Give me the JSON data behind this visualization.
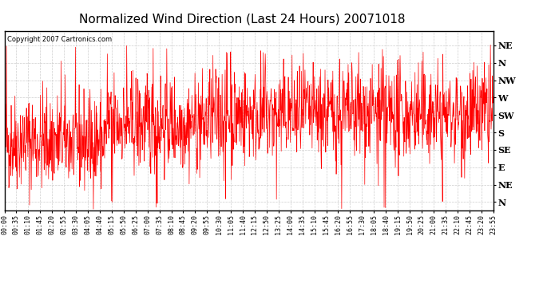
{
  "title": "Normalized Wind Direction (Last 24 Hours) 20071018",
  "copyright_text": "Copyright 2007 Cartronics.com",
  "line_color": "#ff0000",
  "background_color": "#ffffff",
  "plot_bg_color": "#ffffff",
  "grid_color": "#c8c8c8",
  "ytick_labels": [
    "NE",
    "N",
    "NW",
    "W",
    "SW",
    "S",
    "SE",
    "E",
    "NE",
    "N"
  ],
  "ytick_values": [
    9,
    8,
    7,
    6,
    5,
    4,
    3,
    2,
    1,
    0
  ],
  "ylim": [
    -0.5,
    9.8
  ],
  "xtick_labels": [
    "00:00",
    "00:35",
    "01:10",
    "01:45",
    "02:20",
    "02:55",
    "03:30",
    "04:05",
    "04:40",
    "05:15",
    "05:50",
    "06:25",
    "07:00",
    "07:35",
    "08:10",
    "08:45",
    "09:20",
    "09:55",
    "10:30",
    "11:05",
    "11:40",
    "12:15",
    "12:50",
    "13:25",
    "14:00",
    "14:35",
    "15:10",
    "15:45",
    "16:20",
    "16:55",
    "17:30",
    "18:05",
    "18:40",
    "19:15",
    "19:50",
    "20:25",
    "21:00",
    "21:35",
    "22:10",
    "22:45",
    "23:20",
    "23:55"
  ],
  "seed": 42,
  "n_points": 1440,
  "line_width": 0.5,
  "title_fontsize": 11,
  "tick_fontsize": 6,
  "ytick_fontsize": 8
}
